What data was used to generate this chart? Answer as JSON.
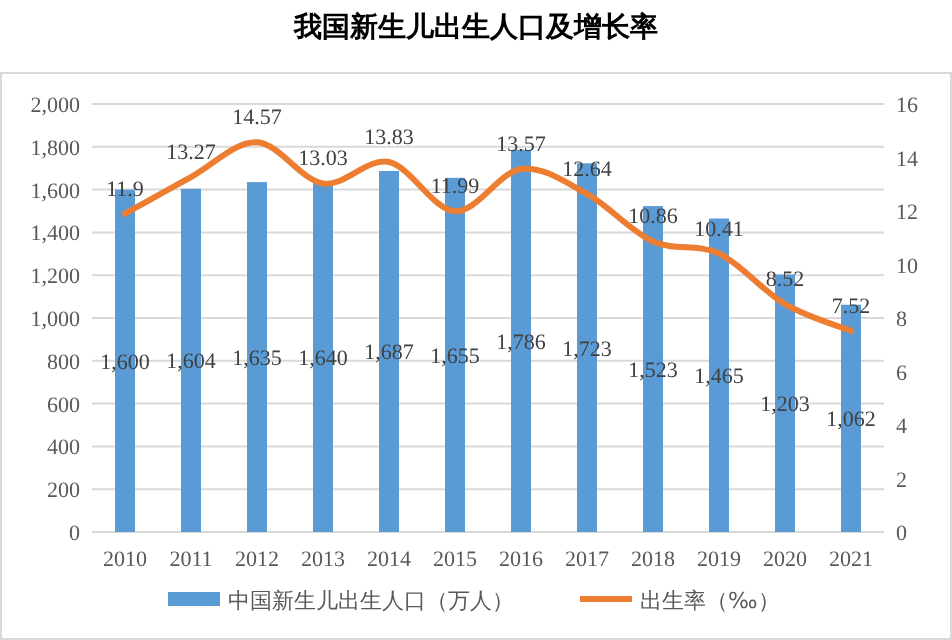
{
  "chart_data": {
    "type": "bar",
    "title": "我国新生儿出生人口及增长率",
    "categories": [
      "2010",
      "2011",
      "2012",
      "2013",
      "2014",
      "2015",
      "2016",
      "2017",
      "2018",
      "2019",
      "2020",
      "2021"
    ],
    "series": [
      {
        "name": "中国新生儿出生人口（万人）",
        "color": "#5b9bd5",
        "values": [
          1600,
          1604,
          1635,
          1640,
          1687,
          1655,
          1786,
          1723,
          1523,
          1465,
          1203,
          1062
        ],
        "value_labels": [
          "1,600",
          "1,604",
          "1,635",
          "1,640",
          "1,687",
          "1,655",
          "1,786",
          "1,723",
          "1,523",
          "1,465",
          "1,203",
          "1,062"
        ]
      },
      {
        "name": "出生率（‰）",
        "type": "line",
        "axis": "y2",
        "color": "#ed7d31",
        "values": [
          11.9,
          13.27,
          14.57,
          13.03,
          13.83,
          11.99,
          13.57,
          12.64,
          10.86,
          10.41,
          8.52,
          7.52
        ],
        "value_labels": [
          "11.9",
          "13.27",
          "14.57",
          "13.03",
          "13.83",
          "11.99",
          "13.57",
          "12.64",
          "10.86",
          "10.41",
          "8.52",
          "7.52"
        ]
      }
    ],
    "ylim": [
      0,
      2000
    ],
    "yticks": [
      0,
      200,
      400,
      600,
      800,
      {
        "value": 1000,
        "label": "1,000"
      },
      {
        "value": 1200,
        "label": "1,200"
      },
      {
        "value": 1400,
        "label": "1,400"
      },
      {
        "value": 1600,
        "label": "1,600"
      },
      {
        "value": 1800,
        "label": "1,800"
      },
      {
        "value": 2000,
        "label": "2,000"
      }
    ],
    "y2lim": [
      0,
      16
    ],
    "y2ticks": [
      0,
      2,
      4,
      6,
      8,
      10,
      12,
      14,
      16
    ],
    "grid": "y",
    "legend": "bottom",
    "marker": "none"
  }
}
